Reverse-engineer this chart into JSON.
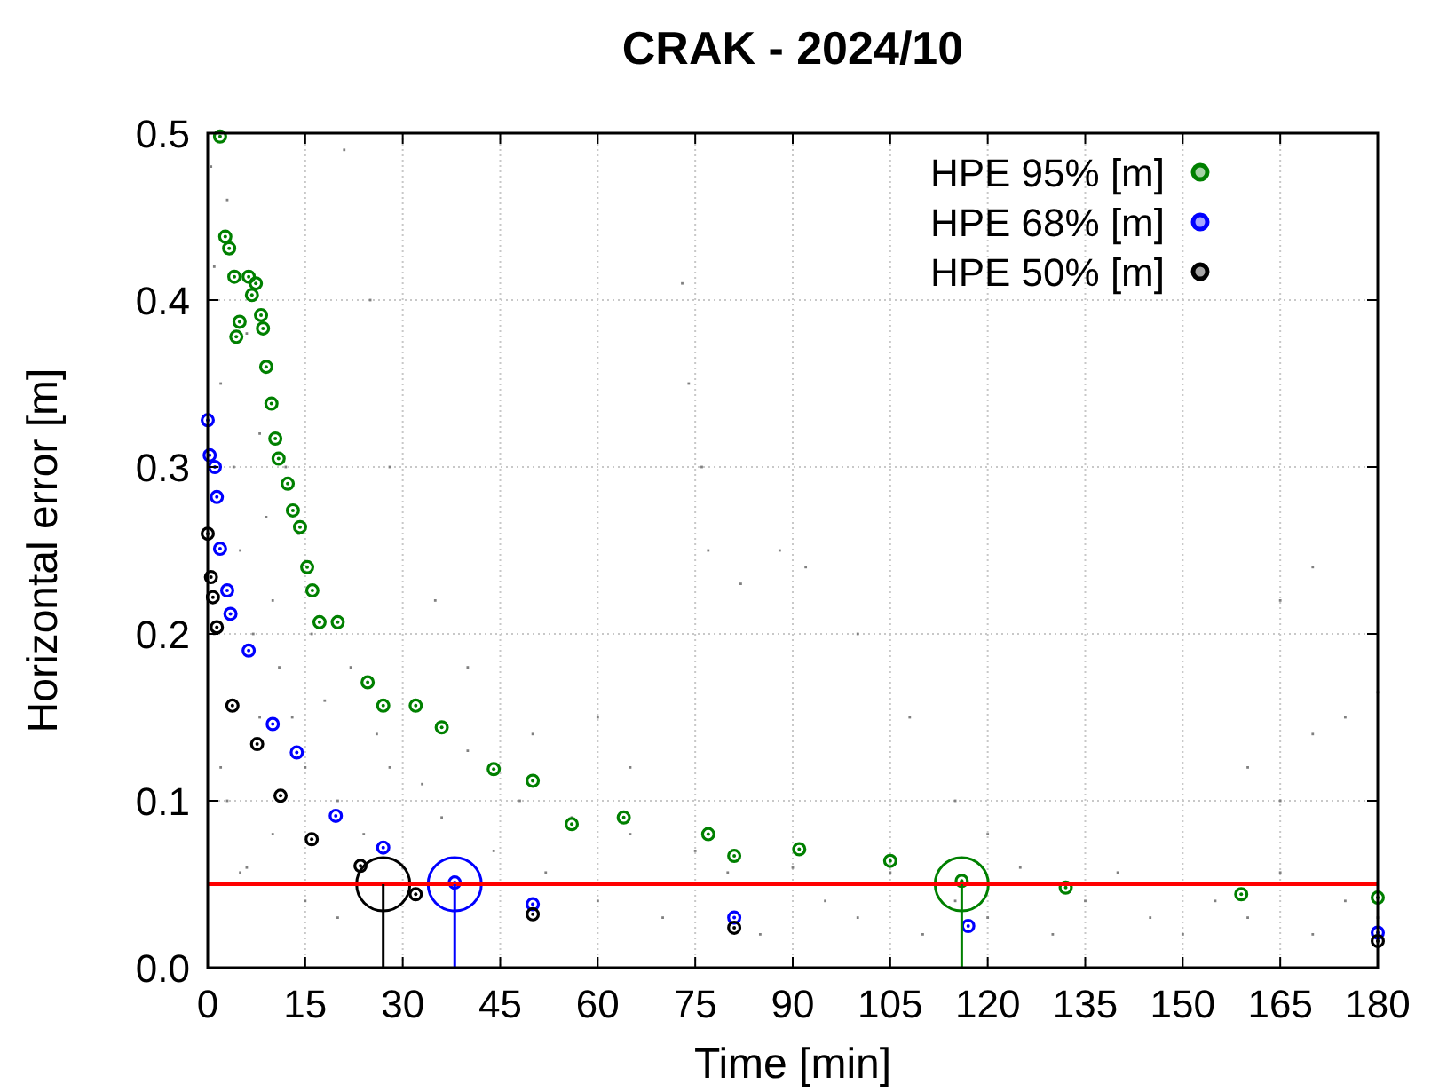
{
  "chart_data": {
    "type": "scatter",
    "title": "CRAK - 2024/10",
    "xlabel": "Time [min]",
    "ylabel": "Horizontal error [m]",
    "xlim": [
      0,
      180
    ],
    "xticks": [
      0,
      15,
      30,
      45,
      60,
      75,
      90,
      105,
      120,
      135,
      150,
      165,
      180
    ],
    "ylim": [
      0,
      0.5
    ],
    "yticks": [
      {
        "value": 0,
        "label": "0.0"
      },
      0.1,
      0.2,
      0.3,
      0.4,
      0.5
    ],
    "grid": true,
    "legend": "top right",
    "ref_lines": [
      {
        "axis": "y",
        "value": 0.05,
        "color": "#ff0000"
      },
      {
        "axis": "x",
        "value": 27,
        "color": "#000000"
      },
      {
        "axis": "x",
        "value": 38,
        "color": "#0000ff"
      },
      {
        "axis": "x",
        "value": 116,
        "color": "#008000"
      }
    ],
    "series": [
      {
        "color": "#808080",
        "marker": "square",
        "x": [
          0.5,
          1,
          2,
          3,
          4,
          5,
          6,
          7,
          8,
          9,
          10,
          11,
          12,
          13,
          14,
          15,
          16,
          18,
          20,
          22,
          24,
          26,
          28,
          30,
          33,
          36,
          40,
          44,
          48,
          52,
          56,
          60,
          65,
          70,
          75,
          80,
          85,
          90,
          95,
          100,
          105,
          110,
          115,
          120,
          125,
          130,
          135,
          140,
          145,
          150,
          155,
          160,
          165,
          170,
          175,
          180,
          5,
          10,
          15,
          20,
          3,
          8,
          1,
          2,
          6,
          21,
          25,
          28,
          35,
          40,
          50,
          60,
          65,
          82,
          88,
          92,
          100,
          108,
          115,
          120,
          160,
          165,
          170,
          175,
          180,
          165,
          170,
          73,
          74,
          76,
          77
        ],
        "values": [
          0.48,
          0.42,
          0.35,
          0.46,
          0.3,
          0.25,
          0.38,
          0.2,
          0.32,
          0.27,
          0.22,
          0.18,
          0.3,
          0.15,
          0.26,
          0.12,
          0.2,
          0.16,
          0.1,
          0.18,
          0.08,
          0.14,
          0.12,
          0.06,
          0.11,
          0.09,
          0.13,
          0.07,
          0.1,
          0.057,
          0.09,
          0.04,
          0.08,
          0.03,
          0.07,
          0.057,
          0.02,
          0.06,
          0.04,
          0.03,
          0.057,
          0.02,
          0.04,
          0.03,
          0.06,
          0.02,
          0.04,
          0.057,
          0.03,
          0.02,
          0.04,
          0.03,
          0.057,
          0.02,
          0.04,
          0.03,
          0.057,
          0.08,
          0.04,
          0.03,
          0.1,
          0.15,
          0.2,
          0.12,
          0.06,
          0.49,
          0.4,
          0.3,
          0.22,
          0.18,
          0.14,
          0.15,
          0.12,
          0.23,
          0.25,
          0.24,
          0.2,
          0.15,
          0.1,
          0.08,
          0.12,
          0.1,
          0.14,
          0.15,
          0.165,
          0.22,
          0.24,
          0.41,
          0.35,
          0.3,
          0.25
        ]
      },
      {
        "name": "HPE 95% [m]",
        "color": "#008000",
        "marker": "circle",
        "x": [
          1.9,
          2.7,
          3.3,
          4.1,
          4.4,
          4.9,
          6.3,
          6.8,
          7.4,
          8.2,
          8.5,
          9,
          9.8,
          10.4,
          10.9,
          12.3,
          13.1,
          14.2,
          15.3,
          16.1,
          17.2,
          20,
          24.6,
          27,
          32,
          36,
          44,
          50,
          56,
          64,
          77,
          81,
          91,
          105,
          116,
          132,
          159,
          180
        ],
        "values": [
          0.498,
          0.438,
          0.431,
          0.414,
          0.378,
          0.387,
          0.414,
          0.403,
          0.41,
          0.391,
          0.383,
          0.36,
          0.338,
          0.317,
          0.305,
          0.29,
          0.274,
          0.264,
          0.24,
          0.226,
          0.207,
          0.207,
          0.171,
          0.157,
          0.157,
          0.144,
          0.119,
          0.112,
          0.086,
          0.09,
          0.08,
          0.067,
          0.071,
          0.064,
          0.052,
          0.048,
          0.044,
          0.042
        ]
      },
      {
        "name": "HPE 68% [m]",
        "color": "#0000ff",
        "marker": "circle",
        "x": [
          0,
          0.3,
          1.1,
          1.4,
          1.9,
          3,
          3.5,
          6.3,
          10,
          13.7,
          19.7,
          27,
          38,
          50,
          81,
          117,
          180
        ],
        "values": [
          0.328,
          0.307,
          0.3,
          0.282,
          0.251,
          0.226,
          0.212,
          0.19,
          0.146,
          0.129,
          0.091,
          0.072,
          0.051,
          0.038,
          0.03,
          0.025,
          0.021
        ]
      },
      {
        "name": "HPE 50% [m]",
        "color": "#000000",
        "marker": "circle",
        "x": [
          0,
          0.5,
          0.8,
          1.4,
          3.8,
          7.6,
          11.2,
          16,
          23.5,
          32,
          50,
          81,
          180
        ],
        "values": [
          0.26,
          0.234,
          0.222,
          0.204,
          0.157,
          0.134,
          0.103,
          0.077,
          0.061,
          0.044,
          0.032,
          0.024,
          0.016
        ]
      },
      {
        "marker": "circle",
        "colors": [
          "#000000",
          "#0000ff",
          "#008000"
        ],
        "x": [
          27,
          38,
          116
        ],
        "values": [
          0.05,
          0.05,
          0.05
        ]
      }
    ]
  }
}
